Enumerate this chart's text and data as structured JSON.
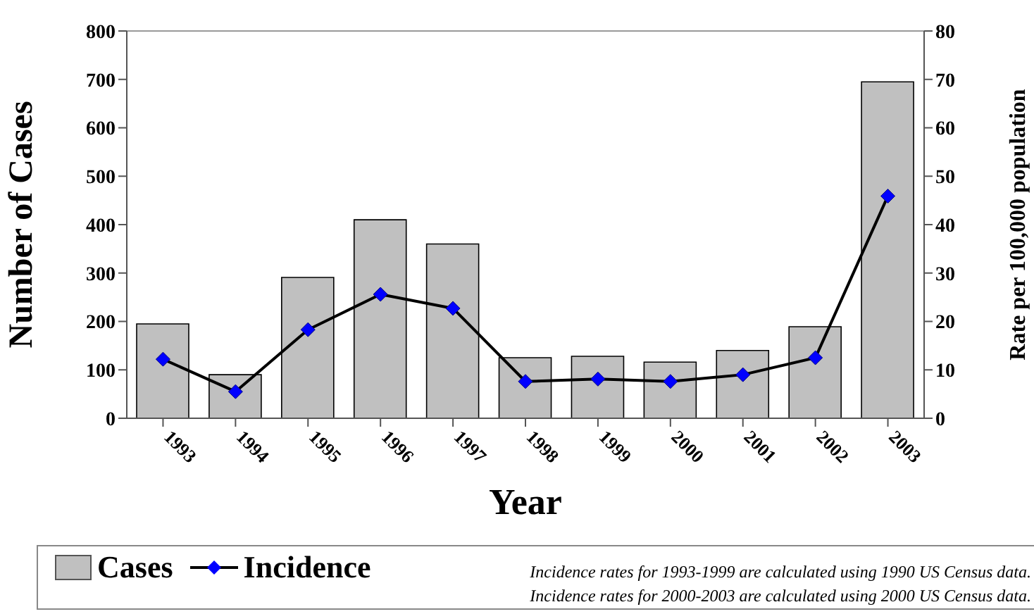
{
  "chart_data": {
    "type": "bar",
    "xlabel": "Year",
    "ylabel": "Number of Cases",
    "y2label": "Rate per 100,000 population",
    "categories": [
      "1993",
      "1994",
      "1995",
      "1996",
      "1997",
      "1998",
      "1999",
      "2000",
      "2001",
      "2002",
      "2003"
    ],
    "series": [
      {
        "name": "Cases",
        "color": "#c0c0c0",
        "values": [
          195,
          90,
          291,
          410,
          360,
          125,
          128,
          116,
          140,
          189,
          695
        ]
      },
      {
        "name": "Incidence",
        "type": "line",
        "axis": "y2",
        "color": "#0000ff",
        "marker": "diamond",
        "values": [
          12.2,
          5.5,
          18.3,
          25.6,
          22.7,
          7.6,
          8.1,
          7.6,
          9.0,
          12.5,
          45.9
        ]
      }
    ],
    "ylim": [
      0,
      800
    ],
    "yticks": [
      0,
      100,
      200,
      300,
      400,
      500,
      600,
      700,
      800
    ],
    "y2lim": [
      0,
      80
    ],
    "y2ticks": [
      0,
      10,
      20,
      30,
      40,
      50,
      60,
      70,
      80
    ],
    "legend": "bottom",
    "grid": false,
    "annotations": [
      "Incidence rates for 1993-1999 are calculated using 1990 US Census data.",
      "Incidence rates for 2000-2003 are calculated using 2000 US Census data."
    ]
  }
}
